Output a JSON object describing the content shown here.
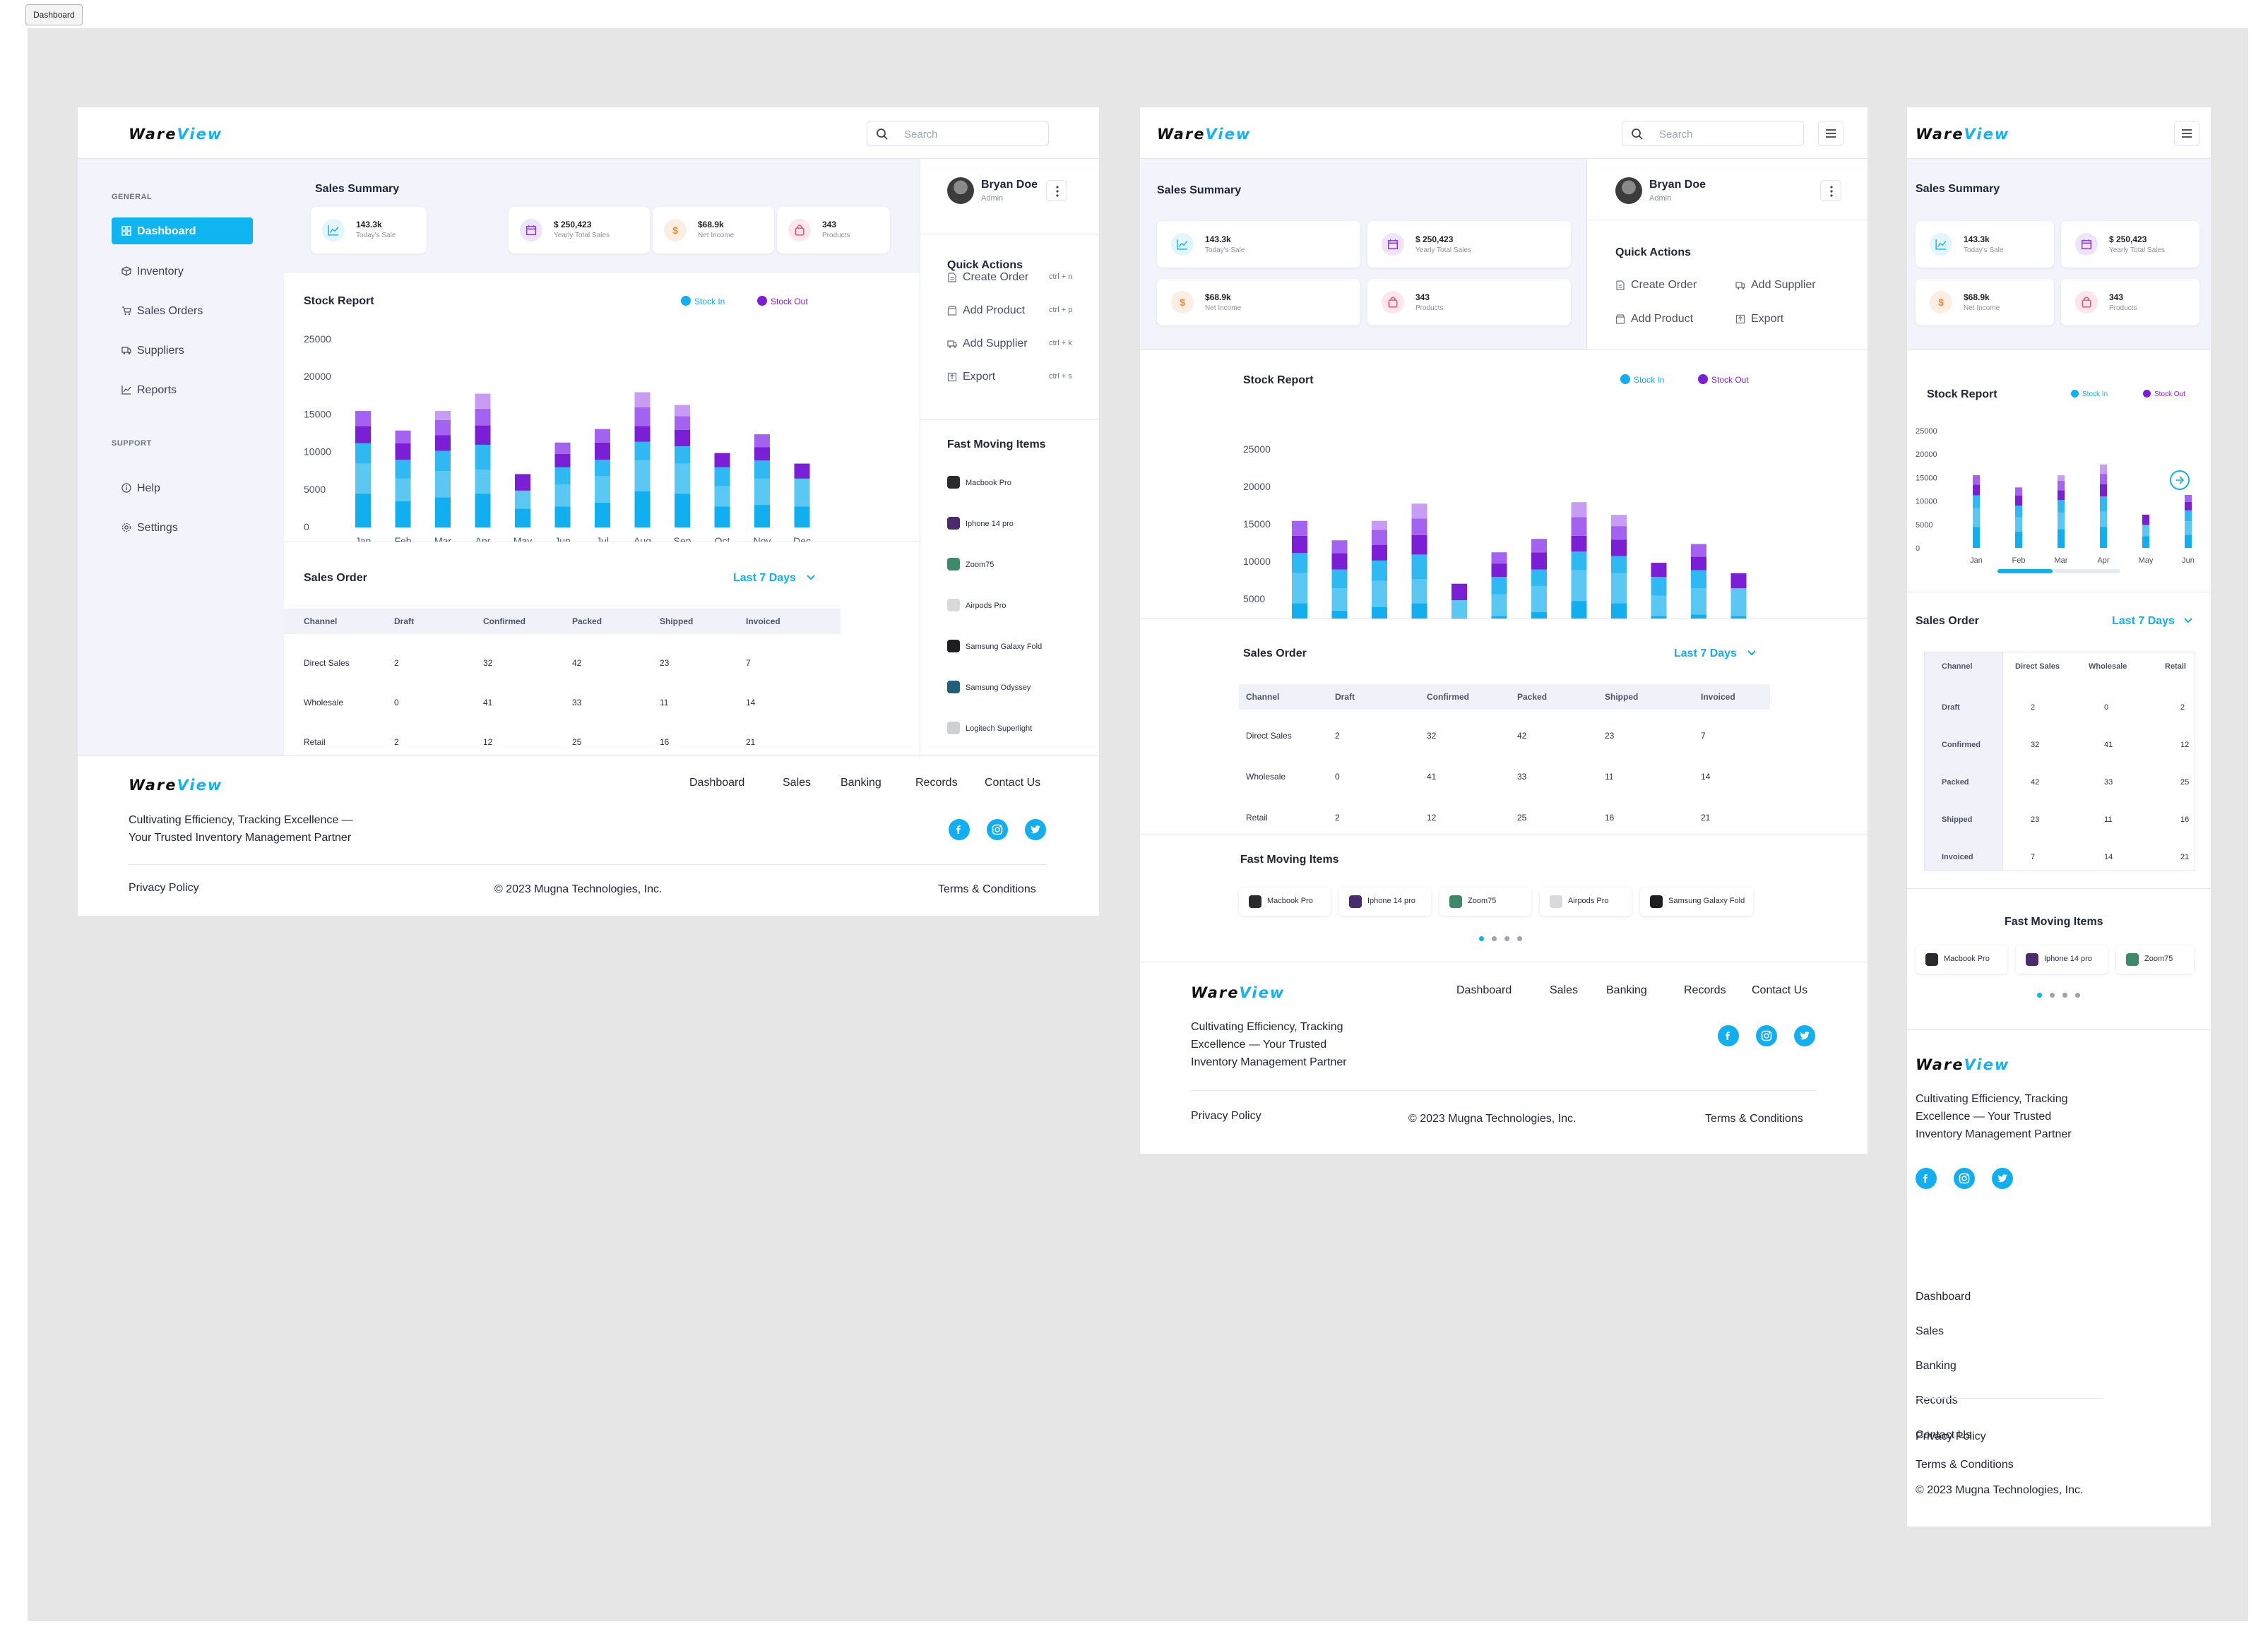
{
  "page_tab": "Dashboard",
  "brand": {
    "logo_main": "Ware",
    "logo_accent": "View"
  },
  "search": {
    "placeholder": "Search"
  },
  "sidebar": {
    "general_label": "GENERAL",
    "support_label": "SUPPORT",
    "items": [
      {
        "label": "Dashboard",
        "icon": "grid-icon"
      },
      {
        "label": "Inventory",
        "icon": "cube-icon"
      },
      {
        "label": "Sales Orders",
        "icon": "cart-icon"
      },
      {
        "label": "Suppliers",
        "icon": "truck-icon"
      },
      {
        "label": "Reports",
        "icon": "chart-line-icon"
      }
    ],
    "support_items": [
      {
        "label": "Help",
        "icon": "info-icon"
      },
      {
        "label": "Settings",
        "icon": "gear-icon"
      }
    ]
  },
  "sales_summary": {
    "title": "Sales Summary",
    "cards": [
      {
        "value": "143.3k",
        "label": "Today's Sale",
        "icon": "trend-icon",
        "color": "#19b5f2",
        "bg": "#e4f6fd"
      },
      {
        "value": "$ 250,423",
        "label": "Yearly Total Sales",
        "icon": "calendar-icon",
        "color": "#8a3ae0",
        "bg": "#efe5fb"
      },
      {
        "value": "$68.9k",
        "label": "Net Income",
        "icon": "dollar-icon",
        "color": "#f08a3a",
        "bg": "#fdeee3"
      },
      {
        "value": "343",
        "label": "Products",
        "icon": "bag-icon",
        "color": "#ef4f7a",
        "bg": "#fde6ec"
      }
    ]
  },
  "stock_report": {
    "title": "Stock Report",
    "legend_in": "Stock In",
    "legend_out": "Stock Out"
  },
  "chart_data": {
    "type": "bar",
    "stacked": true,
    "categories": [
      "Jan",
      "Feb",
      "Mar",
      "Apr",
      "May",
      "Jun",
      "Jul",
      "Aug",
      "Sep",
      "Oct",
      "Nov",
      "Dec"
    ],
    "series": [
      {
        "name": "Stock In",
        "values": [
          4500,
          3500,
          4000,
          4500,
          2500,
          2800,
          3300,
          4800,
          4500,
          2800,
          3000,
          2800
        ],
        "color": "#11aef0"
      },
      {
        "name": "Stock In",
        "values": [
          4000,
          3000,
          3500,
          3200,
          2400,
          2900,
          3500,
          4100,
          4000,
          2700,
          3500,
          3700
        ],
        "color": "#5ac8f2"
      },
      {
        "name": "Stock In",
        "values": [
          2700,
          2500,
          2700,
          3300,
          0,
          2300,
          2200,
          2500,
          2300,
          2500,
          2400,
          0
        ],
        "color": "#2fb8f2"
      },
      {
        "name": "Stock Out",
        "values": [
          2300,
          2200,
          2100,
          2600,
          2200,
          1800,
          2300,
          2100,
          2200,
          1900,
          1800,
          2000
        ],
        "color": "#7b1fd6"
      },
      {
        "name": "Stock Out",
        "values": [
          2000,
          1700,
          2000,
          2200,
          0,
          1500,
          1800,
          2500,
          1800,
          0,
          1700,
          0
        ],
        "color": "#a462f0"
      },
      {
        "name": "Stock Out",
        "values": [
          0,
          0,
          1200,
          2000,
          0,
          0,
          0,
          2000,
          1500,
          0,
          0,
          0
        ],
        "color": "#c79cf5"
      }
    ],
    "yticks": [
      0,
      5000,
      10000,
      15000,
      20000,
      25000
    ],
    "ylim": [
      0,
      25000
    ]
  },
  "chart_data_mobile": {
    "categories": [
      "Jan",
      "Feb",
      "Mar",
      "Apr",
      "May",
      "Jun"
    ],
    "yticks": [
      0,
      5000,
      10000,
      15000,
      20000,
      25000
    ]
  },
  "sales_order": {
    "title": "Sales Order",
    "range": "Last 7 Days",
    "columns": [
      "Channel",
      "Draft",
      "Confirmed",
      "Packed",
      "Shipped",
      "Invoiced"
    ],
    "rows": [
      [
        "Direct Sales",
        "2",
        "32",
        "42",
        "23",
        "7"
      ],
      [
        "Wholesale",
        "0",
        "41",
        "33",
        "11",
        "14"
      ],
      [
        "Retail",
        "2",
        "12",
        "25",
        "16",
        "21"
      ]
    ],
    "mobile_columns": [
      "Channel",
      "Direct Sales",
      "Wholesale",
      "Retail"
    ],
    "mobile_rows": [
      [
        "Draft",
        "2",
        "0",
        "2"
      ],
      [
        "Confirmed",
        "32",
        "41",
        "12"
      ],
      [
        "Packed",
        "42",
        "33",
        "25"
      ],
      [
        "Shipped",
        "23",
        "11",
        "16"
      ],
      [
        "Invoiced",
        "7",
        "14",
        "21"
      ]
    ]
  },
  "user": {
    "name": "Bryan Doe",
    "role": "Admin"
  },
  "quick_actions": {
    "title": "Quick Actions",
    "items": [
      {
        "label": "Create Order",
        "shortcut": "ctrl + n",
        "icon": "file-icon"
      },
      {
        "label": "Add Product",
        "shortcut": "ctrl + p",
        "icon": "box-icon"
      },
      {
        "label": "Add Supplier",
        "shortcut": "ctrl + k",
        "icon": "truck-icon"
      },
      {
        "label": "Export",
        "shortcut": "ctrl + s",
        "icon": "export-icon"
      }
    ]
  },
  "fast_moving": {
    "title": "Fast Moving Items",
    "items": [
      {
        "name": "Macbook Pro",
        "color": "#2a2a2e"
      },
      {
        "name": "Iphone 14 pro",
        "color": "#4a2b6b"
      },
      {
        "name": "Zoom75",
        "color": "#3d8a6a"
      },
      {
        "name": "Airpods Pro",
        "color": "#d9d9dc"
      },
      {
        "name": "Samsung Galaxy Fold",
        "color": "#1d1d22"
      },
      {
        "name": "Samsung Odyssey",
        "color": "#1f5f7a"
      },
      {
        "name": "Logitech Superlight",
        "color": "#cfd0d4"
      }
    ]
  },
  "footer": {
    "links": [
      "Dashboard",
      "Sales",
      "Banking",
      "Records",
      "Contact Us"
    ],
    "tagline": "Cultivating Efficiency, Tracking Excellence — Your Trusted Inventory Management Partner",
    "tagline_desktop_1": "Cultivating Efficiency, Tracking Excellence —",
    "tagline_desktop_2": "Your Trusted Inventory Management Partner",
    "tagline_tablet_1": "Cultivating Efficiency, Tracking",
    "tagline_tablet_2": "Excellence — Your Trusted",
    "tagline_tablet_3": "Inventory Management Partner",
    "privacy": "Privacy Policy",
    "copyright": "© 2023 Mugna Technologies, Inc.",
    "terms": "Terms & Conditions",
    "social": [
      "facebook-icon",
      "instagram-icon",
      "twitter-icon"
    ]
  }
}
